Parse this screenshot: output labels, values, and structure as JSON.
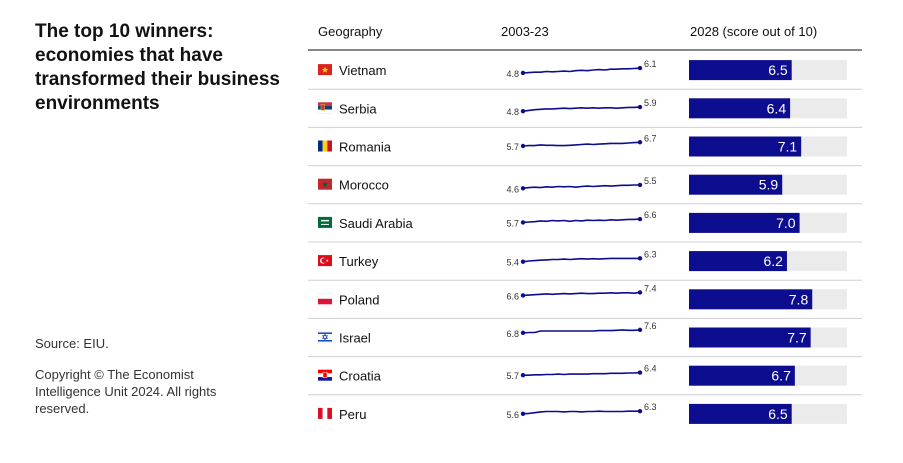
{
  "title": "The top 10 winners: economies that have transformed their business environments",
  "source": "Source: EIU.",
  "copyright": "Copyright © The Economist Intelligence Unit 2024. All rights reserved.",
  "headers": {
    "geography": "Geography",
    "trend": "2003-23",
    "score": "2028 (score out of 10)"
  },
  "colors": {
    "bar": "#0d0d8f",
    "bar_track": "#ebebeb",
    "line": "#0d0d8f",
    "divider": "#d0d0d0"
  },
  "chart_data": {
    "type": "table",
    "columns": [
      "Geography",
      "2003-23",
      "2028 (score out of 10)"
    ],
    "score_max": 10,
    "rows": [
      {
        "country": "Vietnam",
        "flag": "vietnam-flag",
        "start": 4.8,
        "end": 6.1,
        "trend": [
          4.8,
          4.9,
          5.0,
          5.0,
          5.2,
          5.1,
          5.2,
          5.3,
          5.2,
          5.4,
          5.5,
          5.4,
          5.6,
          5.7,
          5.6,
          5.8,
          5.8,
          5.9,
          5.9,
          6.0,
          6.1
        ],
        "score": 6.5,
        "score_label": "6.5"
      },
      {
        "country": "Serbia",
        "flag": "serbia-flag",
        "start": 4.8,
        "end": 5.9,
        "trend": [
          4.8,
          5.0,
          5.2,
          5.3,
          5.4,
          5.4,
          5.5,
          5.6,
          5.5,
          5.6,
          5.7,
          5.6,
          5.7,
          5.6,
          5.7,
          5.7,
          5.6,
          5.7,
          5.8,
          5.8,
          5.9
        ],
        "score": 6.4,
        "score_label": "6.4"
      },
      {
        "country": "Romania",
        "flag": "romania-flag",
        "start": 5.7,
        "end": 6.7,
        "trend": [
          5.7,
          5.8,
          5.8,
          6.0,
          5.9,
          5.9,
          5.8,
          5.8,
          5.9,
          6.0,
          6.1,
          6.2,
          6.1,
          6.2,
          6.3,
          6.4,
          6.4,
          6.4,
          6.5,
          6.6,
          6.7
        ],
        "score": 7.1,
        "score_label": "7.1"
      },
      {
        "country": "Morocco",
        "flag": "morocco-flag",
        "start": 4.6,
        "end": 5.5,
        "trend": [
          4.6,
          4.8,
          4.9,
          4.8,
          5.0,
          4.9,
          5.1,
          5.0,
          5.1,
          4.9,
          5.1,
          5.2,
          5.1,
          5.2,
          5.3,
          5.2,
          5.3,
          5.4,
          5.4,
          5.5,
          5.5
        ],
        "score": 5.9,
        "score_label": "5.9"
      },
      {
        "country": "Saudi Arabia",
        "flag": "saudi-arabia-flag",
        "start": 5.7,
        "end": 6.6,
        "trend": [
          5.7,
          5.8,
          5.9,
          6.1,
          6.0,
          6.2,
          6.1,
          6.2,
          6.0,
          6.2,
          6.1,
          6.3,
          6.2,
          6.3,
          6.2,
          6.4,
          6.3,
          6.4,
          6.5,
          6.5,
          6.6
        ],
        "score": 7.0,
        "score_label": "7.0"
      },
      {
        "country": "Turkey",
        "flag": "turkey-flag",
        "start": 5.4,
        "end": 6.3,
        "trend": [
          5.4,
          5.6,
          5.7,
          5.8,
          5.9,
          6.0,
          6.0,
          6.1,
          6.0,
          6.1,
          6.2,
          6.1,
          6.2,
          6.1,
          6.2,
          6.3,
          6.3,
          6.3,
          6.3,
          6.3,
          6.3
        ],
        "score": 6.2,
        "score_label": "6.2"
      },
      {
        "country": "Poland",
        "flag": "poland-flag",
        "start": 6.6,
        "end": 7.4,
        "trend": [
          6.6,
          6.7,
          6.8,
          6.9,
          7.0,
          6.9,
          7.0,
          7.1,
          7.0,
          7.1,
          7.2,
          7.1,
          7.1,
          7.2,
          7.2,
          7.3,
          7.2,
          7.3,
          7.3,
          7.2,
          7.4
        ],
        "score": 7.8,
        "score_label": "7.8"
      },
      {
        "country": "Israel",
        "flag": "israel-flag",
        "start": 6.8,
        "end": 7.6,
        "trend": [
          6.8,
          6.9,
          6.9,
          7.3,
          7.3,
          7.3,
          7.3,
          7.3,
          7.3,
          7.3,
          7.3,
          7.3,
          7.3,
          7.4,
          7.4,
          7.4,
          7.5,
          7.6,
          7.5,
          7.5,
          7.6
        ],
        "score": 7.7,
        "score_label": "7.7"
      },
      {
        "country": "Croatia",
        "flag": "croatia-flag",
        "start": 5.7,
        "end": 6.4,
        "trend": [
          5.7,
          5.7,
          5.8,
          5.8,
          5.9,
          5.9,
          6.0,
          5.9,
          6.0,
          6.0,
          6.0,
          6.0,
          6.1,
          6.1,
          6.1,
          6.2,
          6.2,
          6.2,
          6.3,
          6.3,
          6.4
        ],
        "score": 6.7,
        "score_label": "6.7"
      },
      {
        "country": "Peru",
        "flag": "peru-flag",
        "start": 5.6,
        "end": 6.3,
        "trend": [
          5.6,
          5.7,
          5.9,
          6.1,
          6.2,
          6.2,
          6.2,
          6.1,
          6.2,
          6.2,
          6.1,
          6.2,
          6.2,
          6.3,
          6.2,
          6.2,
          6.2,
          6.2,
          6.3,
          6.3,
          6.3
        ],
        "score": 6.5,
        "score_label": "6.5"
      }
    ]
  }
}
